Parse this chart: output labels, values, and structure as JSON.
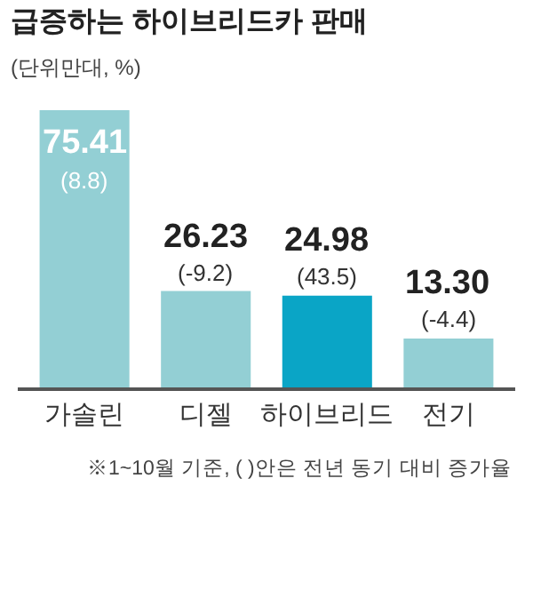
{
  "chart_data": {
    "type": "bar",
    "title": "급증하는 하이브리드카 판매",
    "subtitle": "(단위만대, %)",
    "categories": [
      "가솔린",
      "디젤",
      "하이브리드",
      "전기"
    ],
    "values": [
      75.41,
      26.23,
      24.98,
      13.3
    ],
    "value_labels": [
      "75.41",
      "26.23",
      "24.98",
      "13.30"
    ],
    "colors": [
      "#93cfd4",
      "#93cfd4",
      "#0aa5c6",
      "#93cfd4"
    ],
    "annotations": [
      {
        "text": "(8.8)",
        "x": "가솔린",
        "y": 75.41
      },
      {
        "text": "(-9.2)",
        "x": "디젤",
        "y": 26.23
      },
      {
        "text": "(43.5)",
        "x": "하이브리드",
        "y": 24.98
      },
      {
        "text": "(-4.4)",
        "x": "전기",
        "y": 13.3
      },
      "※1~10월 기준, ( )안은 전년 동기 대비 증가율"
    ],
    "legend": false
  }
}
